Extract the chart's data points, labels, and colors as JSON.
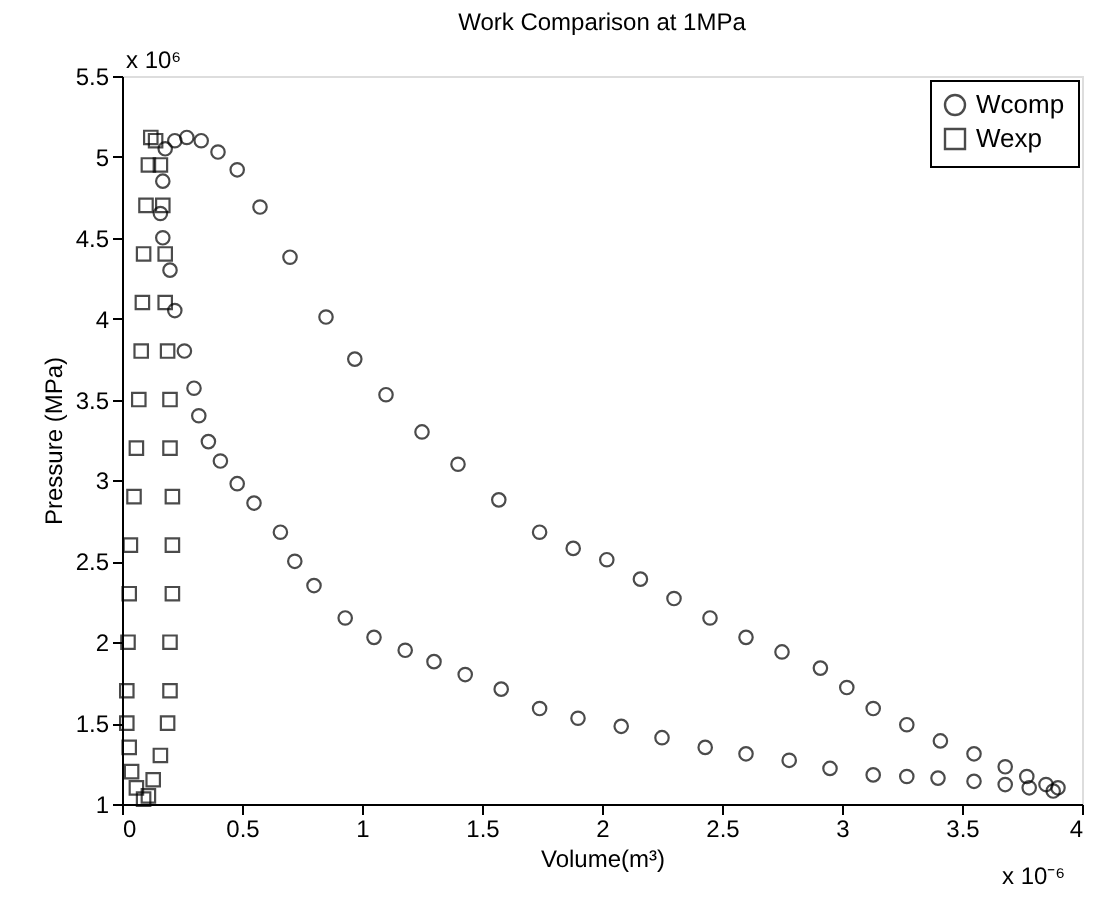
{
  "chart_data": {
    "type": "scatter",
    "title": "Work Comparison at 1MPa",
    "xlabel": "Volume(m³)",
    "ylabel": "Pressure (MPa)",
    "annotations": [
      "x 10⁶",
      "x 10⁻⁶"
    ],
    "xlim": [
      0,
      4
    ],
    "xticks": [
      0,
      0.5,
      1,
      1.5,
      2,
      2.5,
      3,
      3.5,
      4
    ],
    "ylim": [
      1,
      5.5
    ],
    "yticks": [
      1,
      1.5,
      2,
      2.5,
      3,
      3.5,
      4,
      4.5,
      5,
      5.5
    ],
    "grid": false,
    "legend": "top right",
    "series": [
      {
        "name": "Wcomp",
        "color": "#000000",
        "marker": "circle",
        "x": [
          0.27,
          0.33,
          0.4,
          0.48,
          0.575,
          0.7,
          0.85,
          0.97,
          1.1,
          1.25,
          1.4,
          1.57,
          1.74,
          1.88,
          2.02,
          2.16,
          2.3,
          2.45,
          2.6,
          2.75,
          2.91,
          3.02,
          3.13,
          3.27,
          3.41,
          3.55,
          3.68,
          3.77,
          3.85,
          3.9,
          3.88,
          3.78,
          3.68,
          3.55,
          3.4,
          3.27,
          3.13,
          2.95,
          2.78,
          2.6,
          2.43,
          2.25,
          2.08,
          1.9,
          1.74,
          1.58,
          1.43,
          1.3,
          1.18,
          1.05,
          0.93,
          0.8,
          0.72,
          0.66,
          0.55,
          0.48,
          0.41,
          0.36,
          0.32,
          0.3,
          0.26,
          0.22,
          0.2,
          0.17,
          0.16,
          0.17,
          0.18,
          0.22
        ],
        "values": [
          5.12,
          5.1,
          5.03,
          4.92,
          4.69,
          4.38,
          4.01,
          3.75,
          3.53,
          3.3,
          3.1,
          2.88,
          2.68,
          2.58,
          2.51,
          2.39,
          2.27,
          2.15,
          2.03,
          1.94,
          1.84,
          1.72,
          1.59,
          1.49,
          1.39,
          1.31,
          1.23,
          1.17,
          1.12,
          1.1,
          1.08,
          1.1,
          1.12,
          1.14,
          1.16,
          1.17,
          1.18,
          1.22,
          1.27,
          1.31,
          1.35,
          1.41,
          1.48,
          1.53,
          1.59,
          1.71,
          1.8,
          1.88,
          1.95,
          2.03,
          2.15,
          2.35,
          2.5,
          2.68,
          2.86,
          2.98,
          3.12,
          3.24,
          3.4,
          3.57,
          3.8,
          4.05,
          4.3,
          4.5,
          4.65,
          4.85,
          5.05,
          5.1
        ]
      },
      {
        "name": "Wexp",
        "color": "#000000",
        "marker": "square",
        "x": [
          0.09,
          0.06,
          0.04,
          0.03,
          0.02,
          0.02,
          0.025,
          0.03,
          0.035,
          0.05,
          0.06,
          0.07,
          0.08,
          0.085,
          0.09,
          0.1,
          0.11,
          0.12,
          0.14,
          0.16,
          0.17,
          0.18,
          0.18,
          0.19,
          0.2,
          0.2,
          0.21,
          0.21,
          0.21,
          0.2,
          0.2,
          0.19,
          0.16,
          0.13,
          0.11
        ],
        "values": [
          1.03,
          1.1,
          1.2,
          1.35,
          1.5,
          1.7,
          2.0,
          2.3,
          2.6,
          2.9,
          3.2,
          3.5,
          3.8,
          4.1,
          4.4,
          4.7,
          4.95,
          5.12,
          5.1,
          4.95,
          4.7,
          4.4,
          4.1,
          3.8,
          3.5,
          3.2,
          2.9,
          2.6,
          2.3,
          2.0,
          1.7,
          1.5,
          1.3,
          1.15,
          1.05
        ]
      }
    ]
  }
}
